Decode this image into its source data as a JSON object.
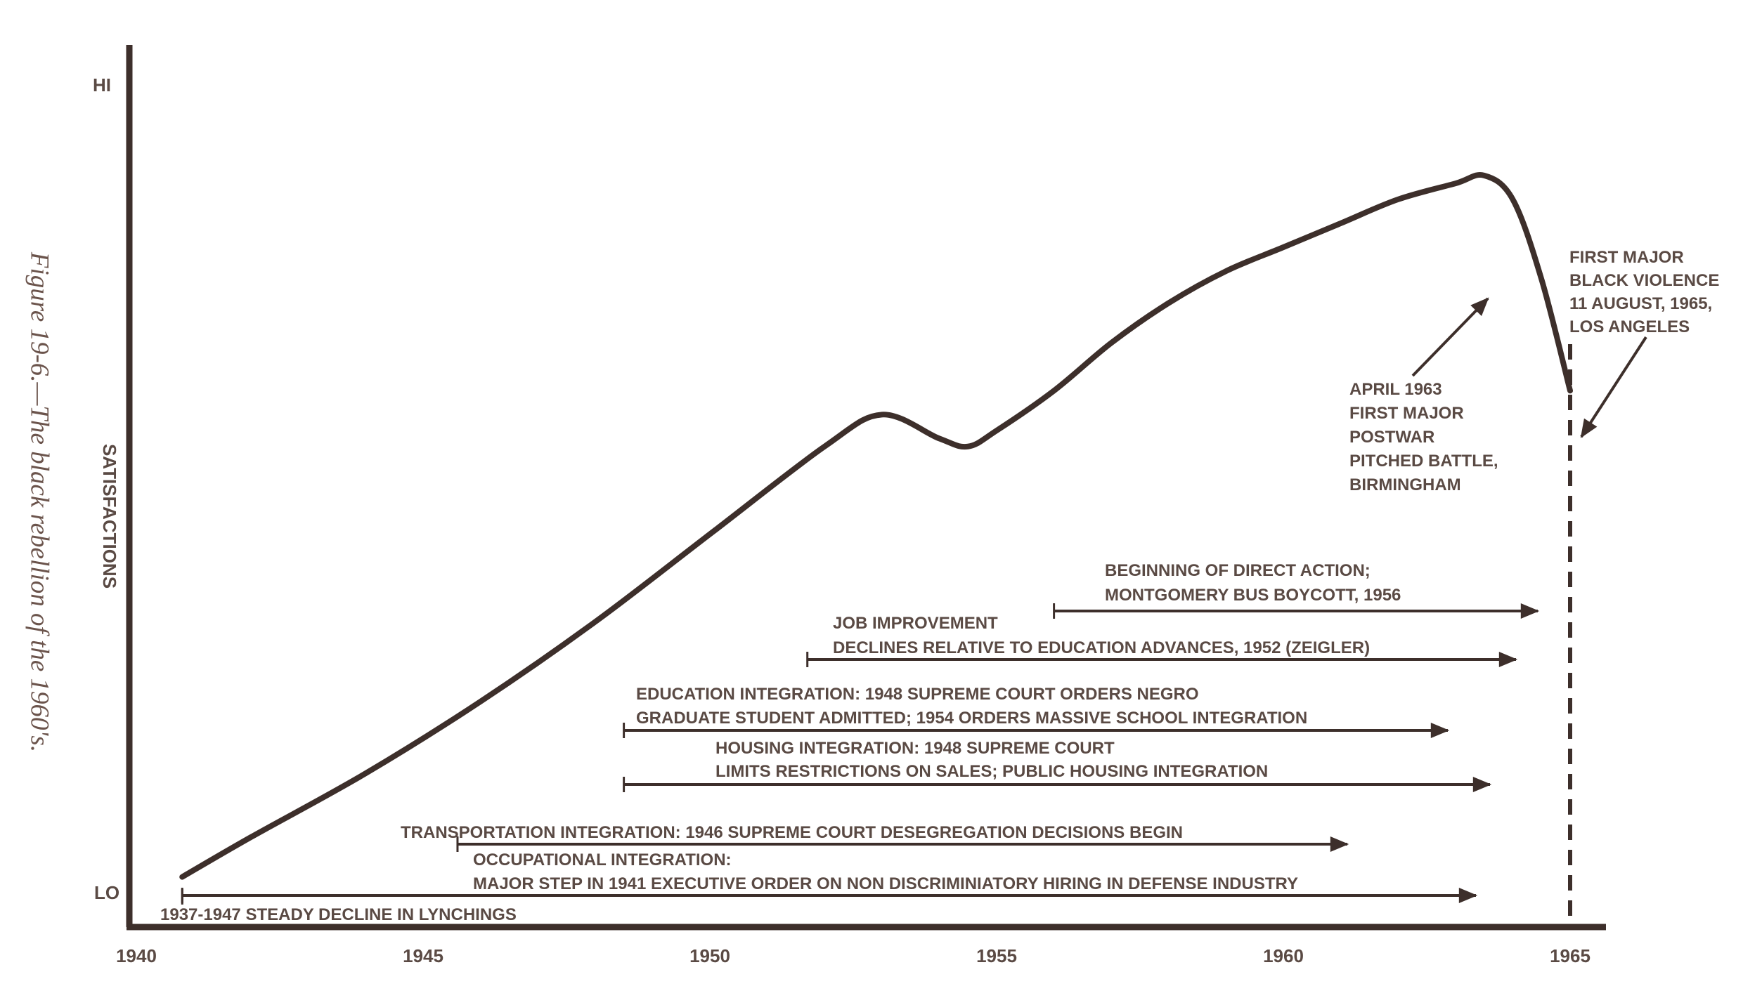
{
  "figure_caption": "Figure 19-6.—The black rebellion of the 1960's.",
  "colors": {
    "ink": "#3d2f2b",
    "text": "#5a4a44",
    "caption": "#6b544c",
    "background": "#ffffff"
  },
  "chart_data": {
    "type": "line",
    "title": "",
    "xlabel": "",
    "ylabel": "SATISFACTIONS",
    "xlim": [
      1940,
      1965.7
    ],
    "ylim": [
      "LO",
      "HI"
    ],
    "x_ticks": [
      "1940",
      "1945",
      "1950",
      "1955",
      "1960",
      "1965"
    ],
    "y_ticks": [
      "HI",
      "LO"
    ],
    "grid": false,
    "series": [
      {
        "name": "",
        "x": [
          1940.8,
          1942,
          1944,
          1946,
          1948,
          1950,
          1952,
          1953,
          1954,
          1954.5,
          1955,
          1956,
          1957,
          1958,
          1959,
          1960,
          1961,
          1962,
          1963,
          1963.5,
          1964,
          1964.5,
          1965
        ],
        "y": [
          0.01,
          0.06,
          0.14,
          0.23,
          0.33,
          0.44,
          0.55,
          0.59,
          0.56,
          0.55,
          0.57,
          0.62,
          0.68,
          0.73,
          0.77,
          0.8,
          0.83,
          0.86,
          0.88,
          0.89,
          0.86,
          0.76,
          0.62
        ]
      }
    ],
    "vertical_markers": [
      {
        "x": 1965,
        "style": "dashed"
      }
    ],
    "annotations": [
      {
        "lines": [
          "APRIL 1963",
          "FIRST MAJOR",
          "POSTWAR",
          "PITCHED BATTLE,",
          "BIRMINGHAM"
        ],
        "points_to_x": 1963.5
      },
      {
        "lines": [
          "FIRST MAJOR",
          "BLACK VIOLENCE",
          "11 AUGUST, 1965,",
          "LOS ANGELES"
        ],
        "points_to_x": 1965
      }
    ],
    "event_arrows": [
      {
        "lines": [
          "BEGINNING OF DIRECT ACTION;",
          "MONTGOMERY BUS BOYCOTT, 1956"
        ],
        "x_start": 1956
      },
      {
        "lines": [
          "JOB IMPROVEMENT",
          "DECLINES RELATIVE TO EDUCATION ADVANCES, 1952 (ZEIGLER)"
        ],
        "x_start": 1951.7
      },
      {
        "lines": [
          "EDUCATION INTEGRATION:  1948 SUPREME COURT ORDERS NEGRO",
          "GRADUATE STUDENT ADMITTED; 1954 ORDERS MASSIVE SCHOOL INTEGRATION"
        ],
        "x_start": 1948.5
      },
      {
        "lines": [
          "HOUSING INTEGRATION:  1948 SUPREME COURT",
          "LIMITS RESTRICTIONS ON SALES; PUBLIC HOUSING INTEGRATION"
        ],
        "x_start": 1948.5
      },
      {
        "lines": [
          "TRANSPORTATION INTEGRATION:  1946 SUPREME COURT DESEGREGATION DECISIONS BEGIN"
        ],
        "x_start": 1945.6
      },
      {
        "lines": [
          "OCCUPATIONAL INTEGRATION:",
          "MAJOR STEP IN 1941 EXECUTIVE ORDER ON NON DISCRIMINIATORY HIRING IN DEFENSE INDUSTRY"
        ],
        "x_start": 1940.8
      },
      {
        "lines": [
          "1937-1947 STEADY DECLINE IN LYNCHINGS"
        ],
        "x_start": 1940.8
      }
    ]
  }
}
